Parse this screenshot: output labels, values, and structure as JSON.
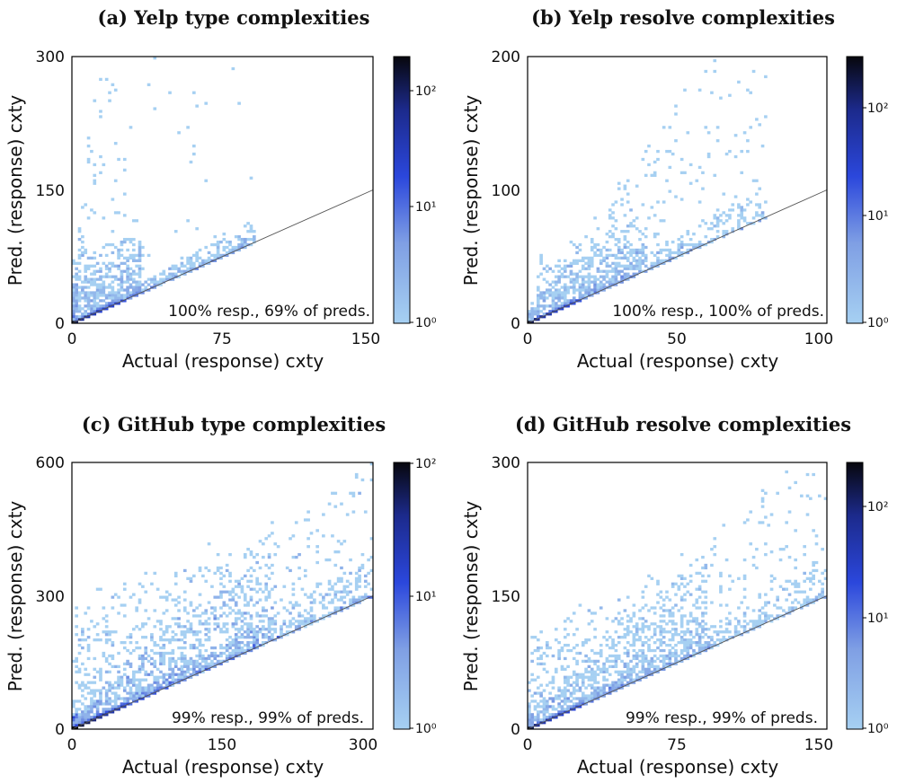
{
  "chart_data": [
    {
      "type": "heatmap",
      "title": "(a) Yelp type complexities",
      "xlabel": "Actual (response) cxty",
      "ylabel": "Pred. (response) cxty",
      "xlim": [
        0,
        150
      ],
      "ylim": [
        0,
        300
      ],
      "xticks": [
        "0",
        "75",
        "150"
      ],
      "yticks": [
        "0",
        "150",
        "300"
      ],
      "colorbar": {
        "scale": "log",
        "range": [
          1,
          300
        ],
        "ticks": [
          "10⁰",
          "10¹",
          "10²"
        ]
      },
      "reference_line": {
        "slope": 1
      },
      "annotation": "100% resp., 69% of preds.",
      "pattern": {
        "xmax": 92,
        "slope_min": 1.0,
        "slope_max": 25.0,
        "dense_x": [
          0,
          35
        ],
        "dense_y": [
          0,
          75
        ],
        "count": 1300
      }
    },
    {
      "type": "heatmap",
      "title": "(b) Yelp resolve complexities",
      "xlabel": "Actual (response) cxty",
      "ylabel": "Pred. (response) cxty",
      "xlim": [
        0,
        100
      ],
      "ylim": [
        0,
        200
      ],
      "xticks": [
        "0",
        "50",
        "100"
      ],
      "yticks": [
        "0",
        "100",
        "200"
      ],
      "colorbar": {
        "scale": "log",
        "range": [
          1,
          300
        ],
        "ticks": [
          "10⁰",
          "10¹",
          "10²"
        ]
      },
      "reference_line": {
        "slope": 1
      },
      "annotation": "100% resp., 100% of preds.",
      "pattern": {
        "xmax": 80,
        "slope_min": 1.0,
        "slope_max": 3.2,
        "dense_x": [
          3,
          40
        ],
        "dense_y": [
          20,
          70
        ],
        "count": 1200
      }
    },
    {
      "type": "heatmap",
      "title": "(c) GitHub type complexities",
      "xlabel": "Actual (response) cxty",
      "ylabel": "Pred. (response) cxty",
      "xlim": [
        0,
        300
      ],
      "ylim": [
        0,
        600
      ],
      "xticks": [
        "0",
        "150",
        "300"
      ],
      "yticks": [
        "0",
        "300",
        "600"
      ],
      "colorbar": {
        "scale": "log",
        "range": [
          1,
          100
        ],
        "ticks": [
          "10⁰",
          "10¹",
          "10²"
        ]
      },
      "reference_line": {
        "slope": 1
      },
      "annotation": "99% resp., 99% of preds.",
      "pattern": {
        "xmax": 300,
        "slope_min": 1.0,
        "slope_max": 2.0,
        "dense_x": [
          0,
          200
        ],
        "dense_y": [
          0,
          300
        ],
        "count": 2200
      }
    },
    {
      "type": "heatmap",
      "title": "(d) GitHub resolve complexities",
      "xlabel": "Actual (response) cxty",
      "ylabel": "Pred. (response) cxty",
      "xlim": [
        0,
        150
      ],
      "ylim": [
        0,
        300
      ],
      "xticks": [
        "0",
        "75",
        "150"
      ],
      "yticks": [
        "0",
        "150",
        "300"
      ],
      "colorbar": {
        "scale": "log",
        "range": [
          1,
          300
        ],
        "ticks": [
          "10⁰",
          "10¹",
          "10²"
        ]
      },
      "reference_line": {
        "slope": 1
      },
      "annotation": "99% resp., 99% of preds.",
      "pattern": {
        "xmax": 150,
        "slope_min": 1.0,
        "slope_max": 2.2,
        "dense_x": [
          0,
          90
        ],
        "dense_y": [
          0,
          120
        ],
        "count": 1800
      }
    }
  ],
  "colors": {
    "low": "#9ccbf0",
    "mid": "#2a3fd6",
    "high": "#0a0a14",
    "line": "#555555",
    "axis": "#000000"
  }
}
